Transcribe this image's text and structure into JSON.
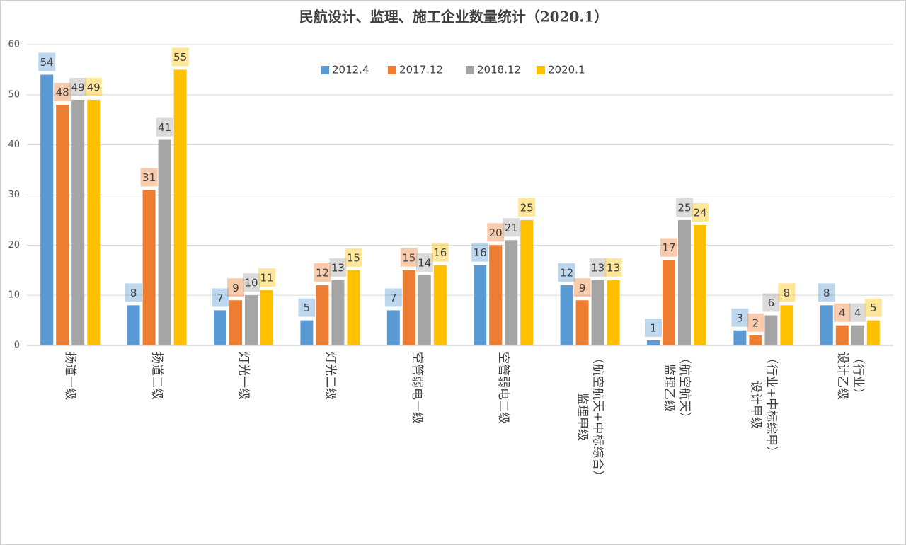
{
  "chart_data": {
    "type": "bar",
    "title": "民航设计、监理、施工企业数量统计（2020.1）",
    "categories": [
      "扬道一级",
      "扬道二级",
      "灯光一级",
      "灯光二级",
      "空管弱电一级",
      "空管弱电二级",
      "监理甲级\n（航空航天+中标综合）",
      "监理乙级\n（航空航天）",
      "设计甲级\n（行业+中标综甲）",
      "设计乙级\n（行业）"
    ],
    "series": [
      {
        "name": "2012.4",
        "color": "#5b9bd5",
        "values": [
          54,
          8,
          7,
          5,
          7,
          16,
          12,
          1,
          3,
          8
        ]
      },
      {
        "name": "2017.12",
        "color": "#ed7d31",
        "values": [
          48,
          31,
          9,
          12,
          15,
          20,
          9,
          17,
          2,
          4
        ]
      },
      {
        "name": "2018.12",
        "color": "#a5a5a5",
        "values": [
          49,
          41,
          10,
          13,
          14,
          21,
          13,
          25,
          6,
          4
        ]
      },
      {
        "name": "2020.1",
        "color": "#ffc000",
        "values": [
          49,
          55,
          11,
          15,
          16,
          25,
          13,
          24,
          8,
          5
        ]
      }
    ],
    "ylim": [
      0,
      60
    ],
    "yticks": [
      0,
      10,
      20,
      30,
      40,
      50,
      60
    ],
    "grid": true
  }
}
